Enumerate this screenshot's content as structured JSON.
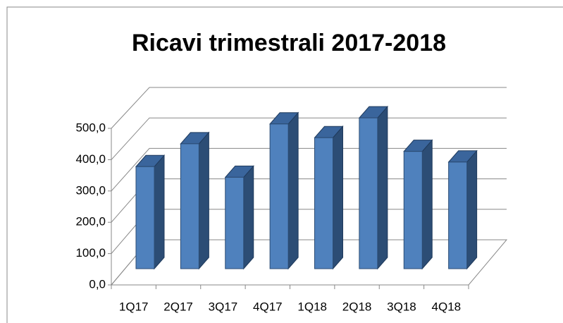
{
  "chart_data": {
    "type": "bar3d",
    "title": "Ricavi trimestrali 2017-2018",
    "categories": [
      "1Q17",
      "2Q17",
      "3Q17",
      "4Q17",
      "1Q18",
      "2Q18",
      "3Q18",
      "4Q18"
    ],
    "values": [
      335,
      410,
      300,
      475,
      430,
      495,
      385,
      350
    ],
    "color": "#4f81bd",
    "ylim": [
      0,
      500
    ],
    "yticks": [
      {
        "value": 0,
        "label": "0,0"
      },
      {
        "value": 100,
        "label": "100,0"
      },
      {
        "value": 200,
        "label": "200,0"
      },
      {
        "value": 300,
        "label": "300,0"
      },
      {
        "value": 400,
        "label": "400,0"
      },
      {
        "value": 500,
        "label": "500,0"
      }
    ],
    "grid": true
  }
}
